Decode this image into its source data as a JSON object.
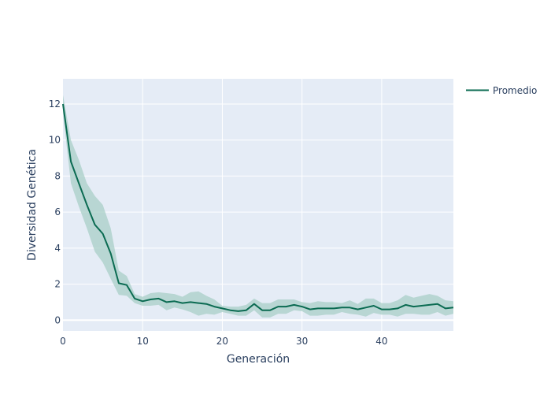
{
  "chart_data": {
    "type": "line",
    "title": "",
    "xlabel": "Generación",
    "ylabel": "Diversidad Genética",
    "xlim": [
      0,
      49
    ],
    "ylim": [
      -0.6,
      13.4
    ],
    "x_ticks": [
      0,
      10,
      20,
      30,
      40
    ],
    "y_ticks": [
      0,
      2,
      4,
      6,
      8,
      10,
      12
    ],
    "grid": true,
    "legend_position": "top-right",
    "colors": {
      "plot_bg": "#E5ECF6",
      "grid": "#ffffff",
      "line": "#0B6B52",
      "band": "#A8CFC7"
    },
    "series": [
      {
        "name": "Promedio",
        "x": [
          0,
          1,
          2,
          3,
          4,
          5,
          6,
          7,
          8,
          9,
          10,
          11,
          12,
          13,
          14,
          15,
          16,
          17,
          18,
          19,
          20,
          21,
          22,
          23,
          24,
          25,
          26,
          27,
          28,
          29,
          30,
          31,
          32,
          33,
          34,
          35,
          36,
          37,
          38,
          39,
          40,
          41,
          42,
          43,
          44,
          45,
          46,
          47,
          48,
          49
        ],
        "y": [
          12.0,
          8.8,
          7.6,
          6.4,
          5.3,
          4.8,
          3.7,
          2.05,
          1.95,
          1.2,
          1.05,
          1.15,
          1.2,
          1.0,
          1.05,
          0.95,
          1.0,
          0.95,
          0.9,
          0.75,
          0.65,
          0.55,
          0.5,
          0.55,
          0.9,
          0.55,
          0.55,
          0.75,
          0.75,
          0.85,
          0.75,
          0.6,
          0.65,
          0.65,
          0.65,
          0.7,
          0.7,
          0.6,
          0.7,
          0.8,
          0.6,
          0.6,
          0.65,
          0.85,
          0.75,
          0.8,
          0.85,
          0.9,
          0.65,
          0.7
        ],
        "upper": [
          12.5,
          10.0,
          8.9,
          7.6,
          6.9,
          6.4,
          5.1,
          2.75,
          2.45,
          1.45,
          1.3,
          1.5,
          1.55,
          1.5,
          1.45,
          1.3,
          1.55,
          1.6,
          1.35,
          1.15,
          0.8,
          0.75,
          0.75,
          0.85,
          1.2,
          0.95,
          0.95,
          1.15,
          1.15,
          1.15,
          1.0,
          0.95,
          1.05,
          1.0,
          1.0,
          0.95,
          1.1,
          0.9,
          1.2,
          1.2,
          0.95,
          0.95,
          1.1,
          1.4,
          1.25,
          1.35,
          1.45,
          1.35,
          1.1,
          1.05
        ],
        "lower": [
          11.5,
          7.6,
          6.3,
          5.1,
          3.8,
          3.2,
          2.3,
          1.4,
          1.35,
          0.95,
          0.8,
          0.8,
          0.85,
          0.55,
          0.7,
          0.6,
          0.45,
          0.25,
          0.35,
          0.3,
          0.45,
          0.35,
          0.25,
          0.25,
          0.55,
          0.15,
          0.15,
          0.35,
          0.35,
          0.55,
          0.5,
          0.25,
          0.25,
          0.3,
          0.3,
          0.45,
          0.35,
          0.3,
          0.2,
          0.4,
          0.3,
          0.3,
          0.2,
          0.35,
          0.35,
          0.3,
          0.3,
          0.45,
          0.25,
          0.35
        ]
      }
    ]
  }
}
